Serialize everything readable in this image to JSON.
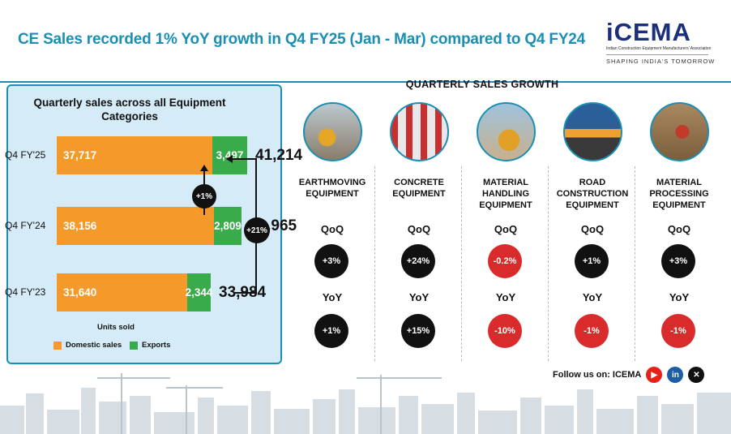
{
  "headline": "CE Sales recorded 1% YoY growth in Q4 FY25 (Jan - Mar) compared to Q4 FY24",
  "logo": {
    "word": "iCEMA",
    "sub": "Indian Construction Equipment Manufacturers' Association",
    "tagline": "SHAPING INDIA'S TOMORROW"
  },
  "colors": {
    "accent": "#1a8fb3",
    "domestic": "#f59a2a",
    "exports": "#3aab4b",
    "positive": "#111111",
    "negative": "#d92b2b",
    "panel": "#d5ecf8"
  },
  "chart_data": [
    {
      "type": "bar",
      "title": "Quarterly sales across all Equipment Categories",
      "categories": [
        "Q4 FY'25",
        "Q4 FY'24",
        "Q4 FY'23"
      ],
      "series": [
        {
          "name": "Domestic sales",
          "values": [
            37717,
            38156,
            31640
          ],
          "labels": [
            "37,717",
            "38,156",
            "31,640"
          ]
        },
        {
          "name": "Exports",
          "values": [
            3497,
            2809,
            2344
          ],
          "labels": [
            "3,497",
            "2,809",
            "2,344"
          ]
        }
      ],
      "totals": [
        "41,214",
        "40,965",
        "33,984"
      ],
      "total_values": [
        41214,
        40965,
        33984
      ],
      "growth": {
        "yoy": "+1%",
        "two_year": "+21%"
      },
      "xlabel": "Units sold",
      "orientation": "horizontal",
      "stacked": true
    },
    {
      "type": "table",
      "title": "QUARTERLY SALES GROWTH",
      "metrics": {
        "qoq_label": "QoQ",
        "yoy_label": "YoY"
      },
      "categories": [
        {
          "name": "EARTHMOVING EQUIPMENT",
          "qoq": "+3%",
          "yoy": "+1%",
          "qoq_sign": "pos",
          "yoy_sign": "pos"
        },
        {
          "name": "CONCRETE EQUIPMENT",
          "qoq": "+24%",
          "yoy": "+15%",
          "qoq_sign": "pos",
          "yoy_sign": "pos"
        },
        {
          "name": "MATERIAL HANDLING EQUIPMENT",
          "qoq": "-0.2%",
          "yoy": "-10%",
          "qoq_sign": "neg",
          "yoy_sign": "neg"
        },
        {
          "name": "ROAD CONSTRUCTION EQUIPMENT",
          "qoq": "+1%",
          "yoy": "-1%",
          "qoq_sign": "pos",
          "yoy_sign": "neg"
        },
        {
          "name": "MATERIAL PROCESSING EQUIPMENT",
          "qoq": "+3%",
          "yoy": "-1%",
          "qoq_sign": "pos",
          "yoy_sign": "neg"
        }
      ]
    }
  ],
  "footer": {
    "follow": "Follow us on: ICEMA",
    "socials": [
      {
        "icon": "youtube-icon",
        "glyph": "▶",
        "color": "#e62117"
      },
      {
        "icon": "linkedin-icon",
        "glyph": "in",
        "color": "#1d5da8"
      },
      {
        "icon": "x-icon",
        "glyph": "✕",
        "color": "#111111"
      }
    ]
  }
}
